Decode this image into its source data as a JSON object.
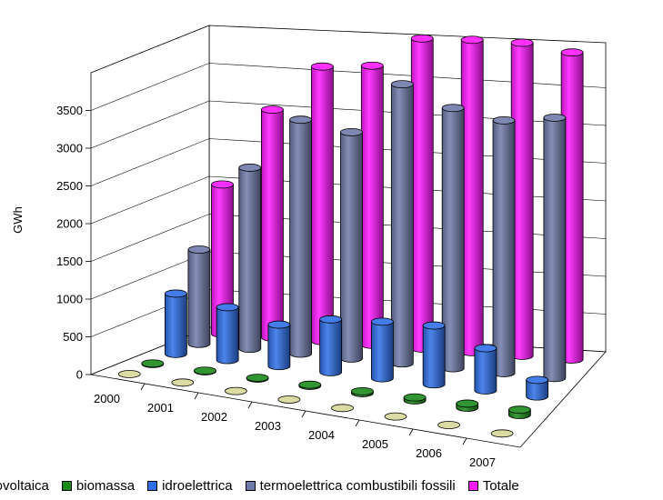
{
  "chart_data": {
    "type": "bar",
    "style": "3d-cylinder",
    "categories": [
      "2000",
      "2001",
      "2002",
      "2003",
      "2004",
      "2005",
      "2006",
      "2007"
    ],
    "ylabel": "GWh",
    "yticks": [
      0,
      500,
      1000,
      1500,
      2000,
      2500,
      3000,
      3500
    ],
    "ylim": [
      0,
      4000
    ],
    "grid": true,
    "legend_position": "bottom",
    "series": [
      {
        "name": "fotovoltaica",
        "color": "#d7d79a",
        "values": [
          0,
          0,
          0,
          0,
          0,
          0,
          0,
          0
        ]
      },
      {
        "name": "biomassa",
        "color": "#1a8a1a",
        "values": [
          8,
          8,
          10,
          15,
          25,
          40,
          55,
          70
        ]
      },
      {
        "name": "idroelettrica",
        "color": "#2f6fe8",
        "values": [
          800,
          700,
          550,
          700,
          750,
          780,
          560,
          220
        ]
      },
      {
        "name": "termoelettrica combustibili fossili",
        "color": "#707aa8",
        "values": [
          1250,
          2400,
          3100,
          3000,
          3700,
          3450,
          3350,
          3450
        ]
      },
      {
        "name": "Totale",
        "color": "#ff1aff",
        "values": [
          1980,
          3020,
          3640,
          3700,
          4110,
          4140,
          4150,
          4070
        ]
      }
    ]
  }
}
